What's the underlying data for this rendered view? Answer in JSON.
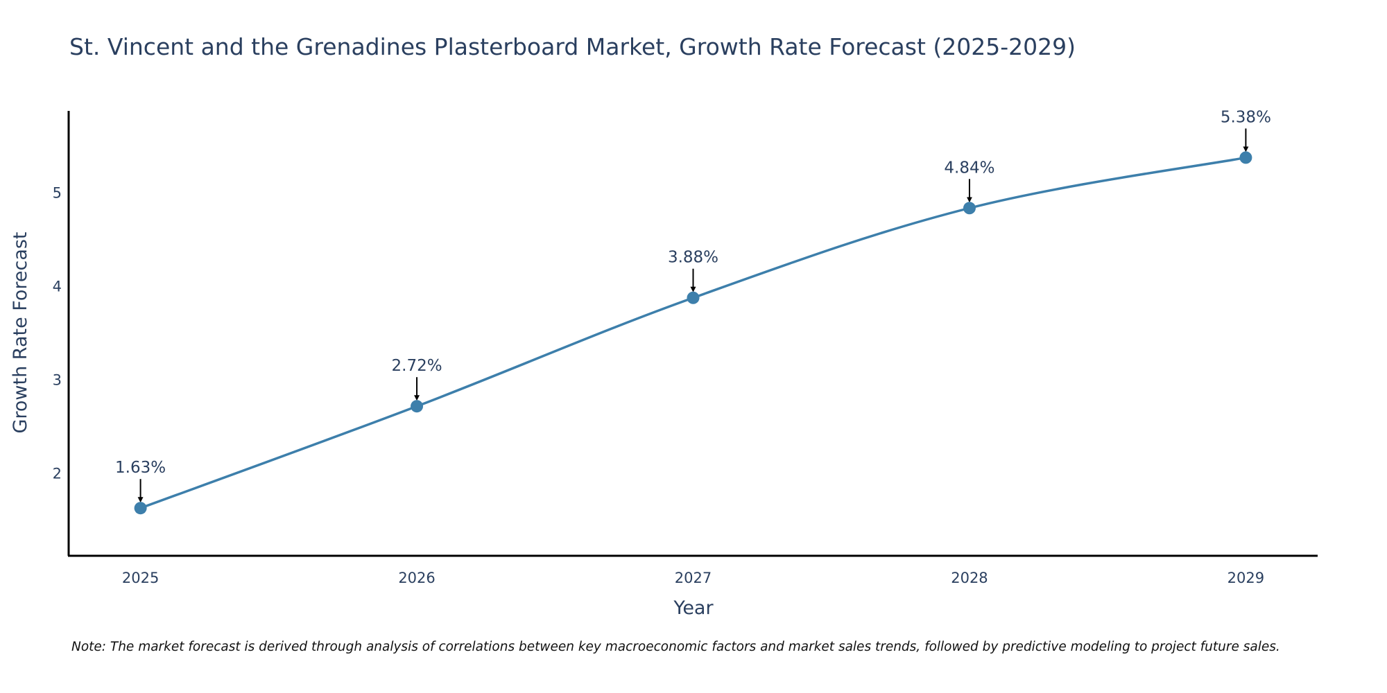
{
  "chart_data": {
    "type": "line",
    "title": "St. Vincent and the Grenadines Plasterboard Market, Growth Rate Forecast (2025-2029)",
    "xlabel": "Year",
    "ylabel": "Growth Rate Forecast",
    "categories": [
      "2025",
      "2026",
      "2027",
      "2028",
      "2029"
    ],
    "series": [
      {
        "name": "Growth Rate Forecast",
        "values": [
          1.63,
          2.72,
          3.88,
          4.84,
          5.38
        ],
        "labels": [
          "1.63%",
          "2.72%",
          "3.88%",
          "4.84%",
          "5.38%"
        ],
        "color": "#3d7fab"
      }
    ],
    "yticks": [
      2,
      3,
      4,
      5
    ],
    "ylim": [
      1.12,
      5.88
    ],
    "xlim": [
      2024.74,
      2029.26
    ],
    "grid": false,
    "note": "Note: The market forecast is derived through analysis of correlations between key macroeconomic factors and market sales trends, followed by predictive modeling to project future sales."
  }
}
